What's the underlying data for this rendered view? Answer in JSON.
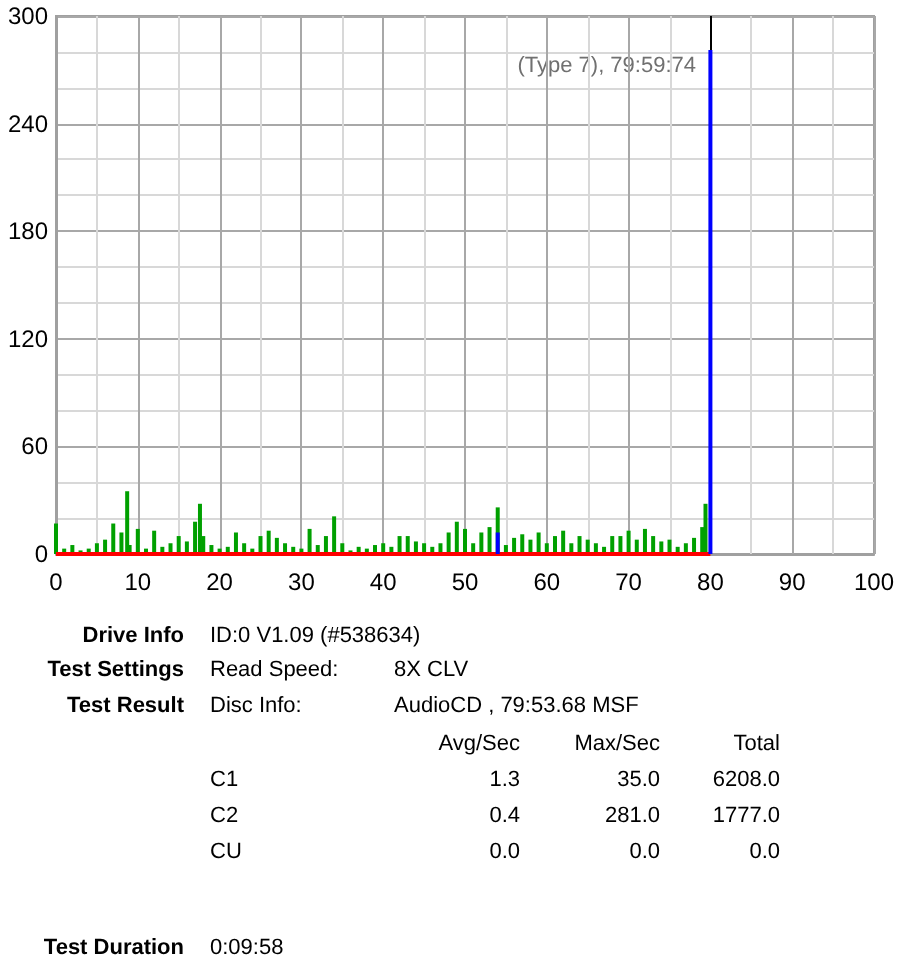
{
  "chart_data": {
    "type": "bar",
    "xlim": [
      0,
      100
    ],
    "xticks": [
      0,
      10,
      20,
      30,
      40,
      50,
      60,
      70,
      80,
      90,
      100
    ],
    "ylim": [
      0,
      300
    ],
    "yticks": [
      0,
      60,
      120,
      180,
      240,
      300
    ],
    "grid": true,
    "series": [
      {
        "color": "#00a000",
        "x": [
          0,
          1,
          2,
          3,
          4,
          5,
          6,
          7,
          8,
          8.7,
          9,
          10,
          11,
          12,
          13,
          14,
          15,
          16,
          17,
          17.6,
          18,
          19,
          20,
          21,
          22,
          23,
          24,
          25,
          26,
          27,
          28,
          29,
          30,
          31,
          32,
          33,
          34,
          35,
          36,
          37,
          38,
          39,
          40,
          41,
          42,
          43,
          44,
          45,
          46,
          47,
          48,
          49,
          50,
          51,
          52,
          53,
          54,
          55,
          56,
          57,
          58,
          59,
          60,
          61,
          62,
          63,
          64,
          65,
          66,
          67,
          68,
          69,
          70,
          71,
          72,
          73,
          74,
          75,
          76,
          77,
          78,
          79,
          79.4
        ],
        "values": [
          17,
          3,
          5,
          2,
          3,
          6,
          8,
          17,
          12,
          35,
          5,
          14,
          3,
          13,
          4,
          6,
          10,
          7,
          18,
          28,
          10,
          5,
          3,
          4,
          12,
          6,
          3,
          10,
          13,
          9,
          6,
          4,
          3,
          14,
          5,
          10,
          21,
          6,
          2,
          4,
          3,
          5,
          6,
          4,
          10,
          10,
          7,
          6,
          4,
          6,
          12,
          18,
          14,
          6,
          12,
          15,
          26,
          5,
          9,
          11,
          8,
          12,
          6,
          10,
          13,
          6,
          10,
          8,
          6,
          4,
          10,
          10,
          13,
          8,
          14,
          10,
          7,
          8,
          4,
          6,
          9,
          15,
          28
        ]
      },
      {
        "type": "bar",
        "color": "#0000ff",
        "x": [
          54,
          80
        ],
        "values": [
          12,
          281
        ]
      },
      {
        "type": "line",
        "color": "#ff0000",
        "x": [
          0,
          80
        ],
        "values": [
          0,
          0
        ]
      }
    ],
    "ref_lines": [
      {
        "axis": "x",
        "value": 80,
        "color": "#000000"
      }
    ],
    "annotations": [
      "(Type 7), 79:59:74",
      "Drive Info",
      "ID:0 V1.09 (#538634)",
      "Test Settings",
      "Read Speed:",
      "8X CLV",
      "Test Result",
      "Disc Info:",
      "AudioCD , 79:53.68 MSF",
      "Avg/Sec",
      "Max/Sec",
      "Total",
      "C1",
      "1.3",
      "35.0",
      "6208.0",
      "C2",
      "0.4",
      "281.0",
      "1777.0",
      "CU",
      "0.0",
      "0.0",
      "0.0",
      "Test Duration",
      "0:09:58"
    ]
  }
}
